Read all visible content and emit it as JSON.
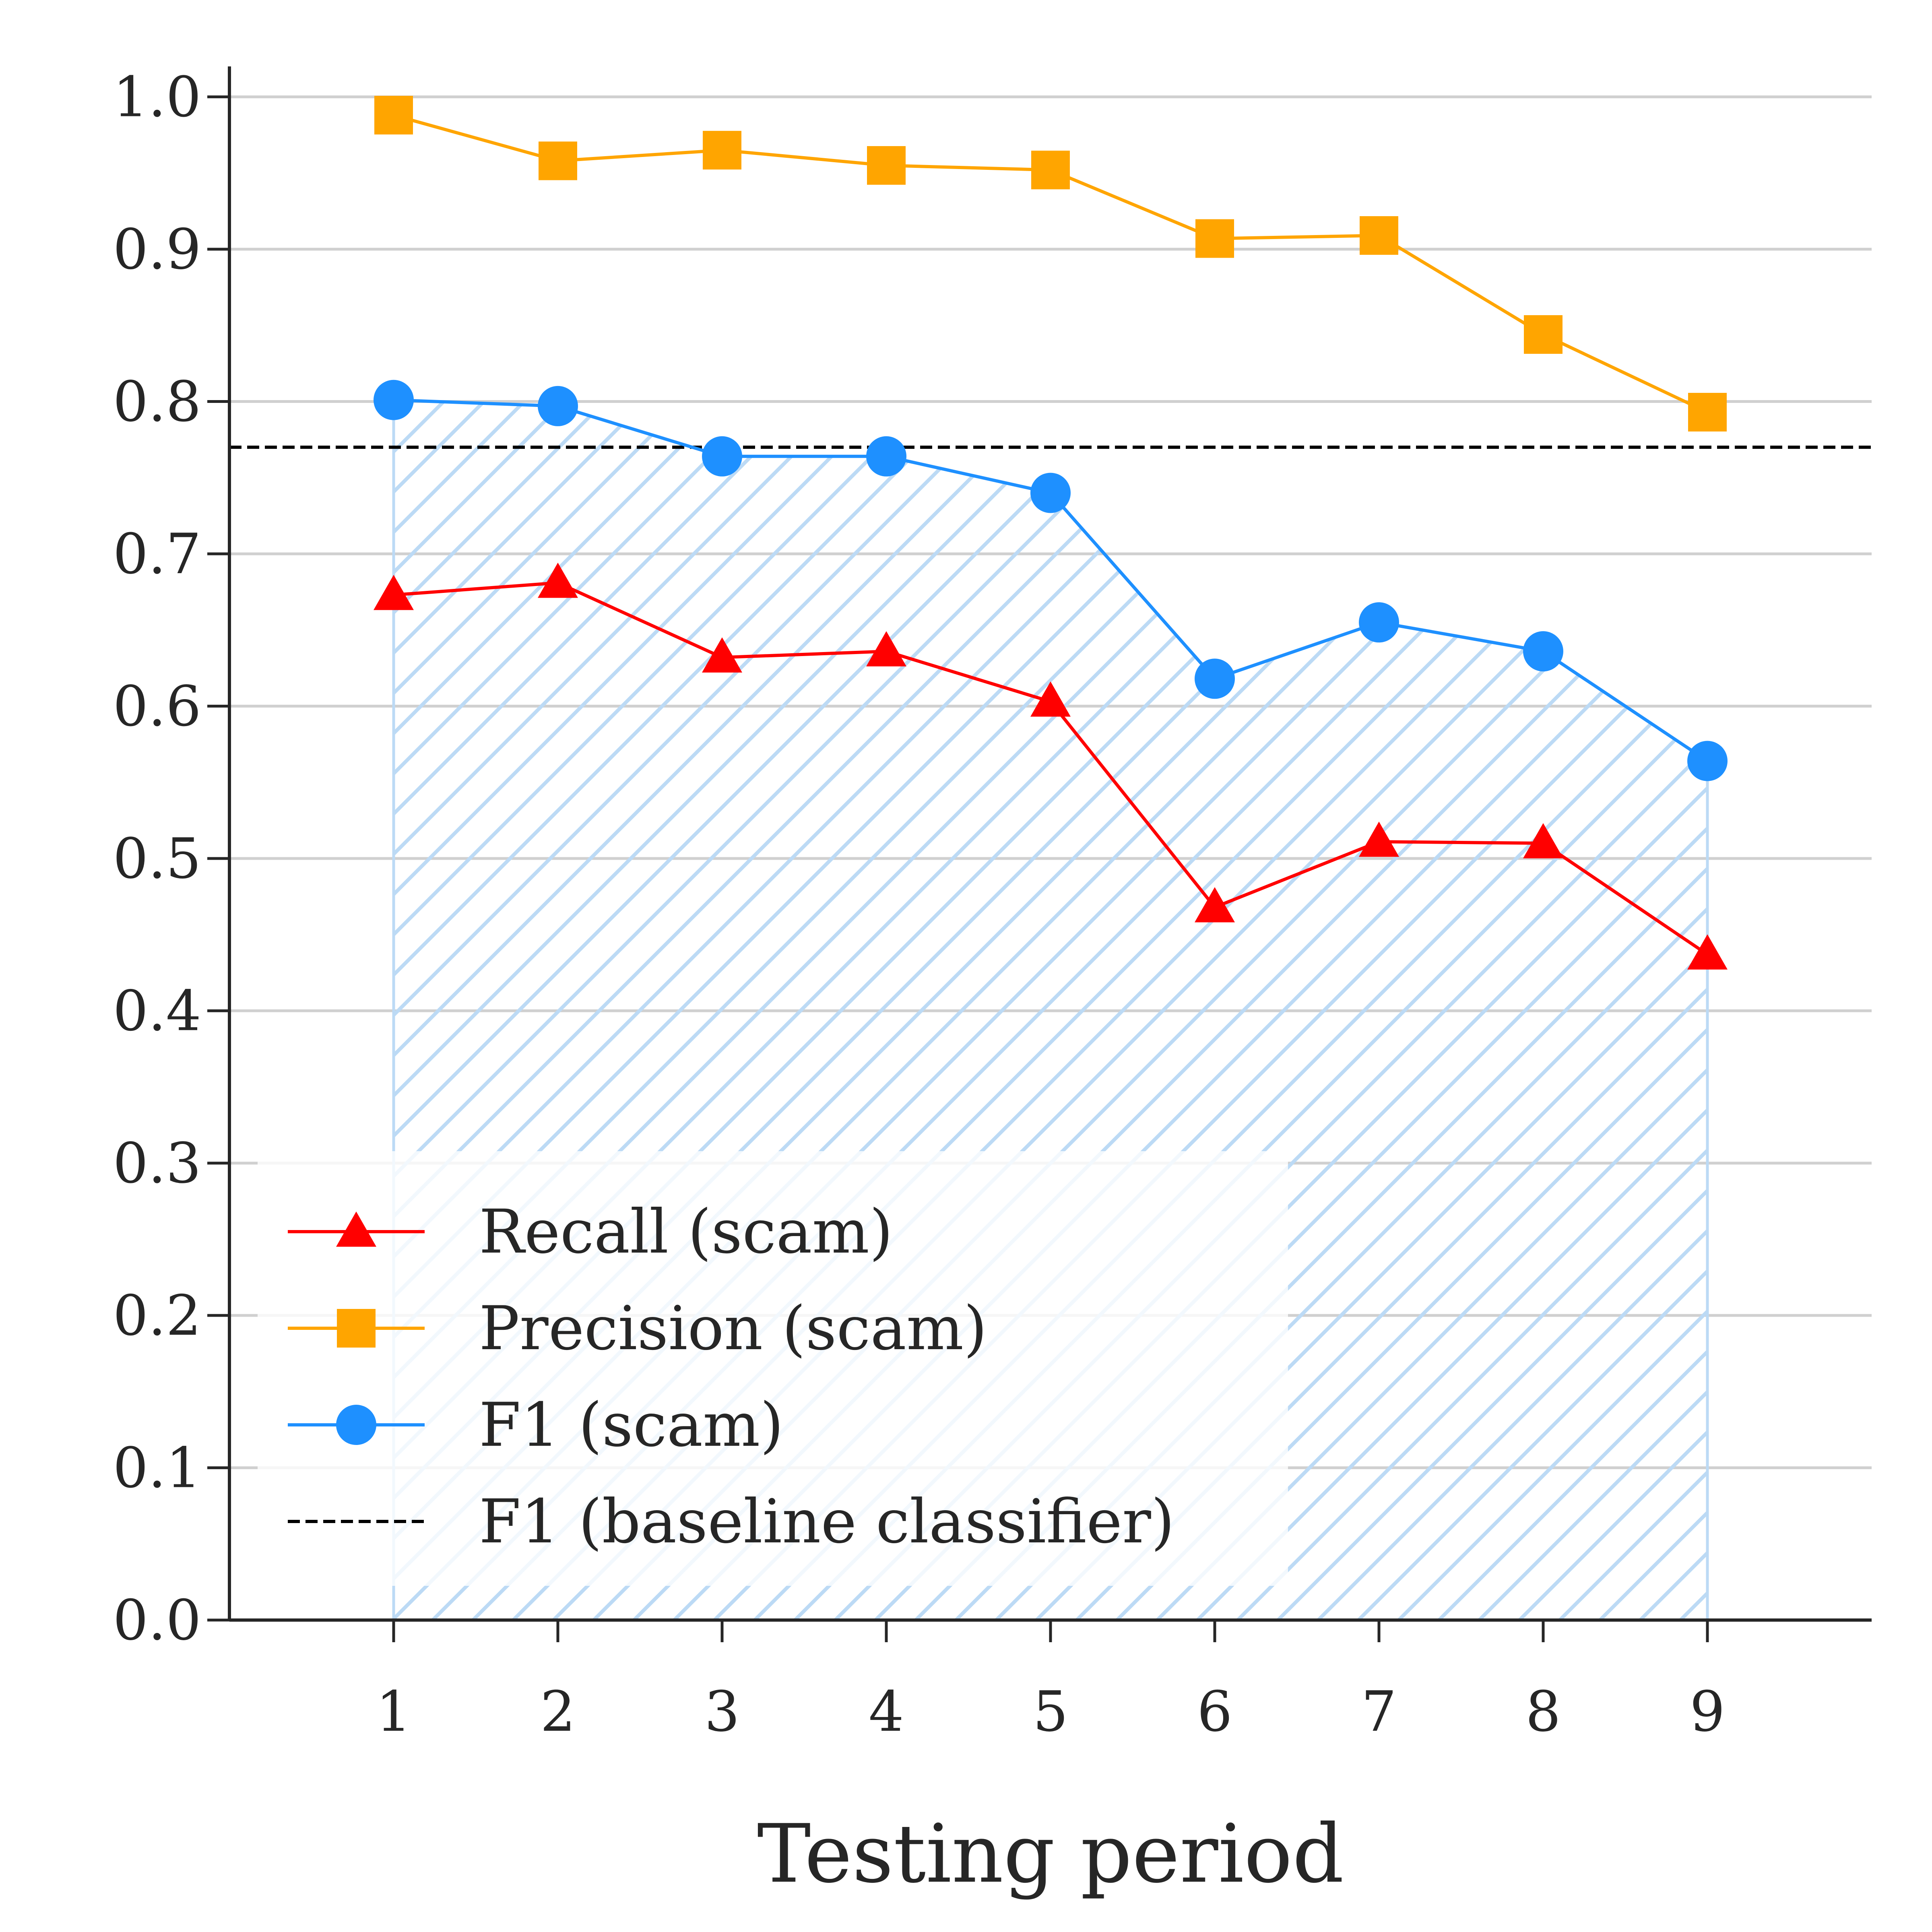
{
  "chart_data": {
    "type": "line",
    "title": "",
    "xlabel": "Testing period",
    "ylabel": "",
    "x": [
      1,
      2,
      3,
      4,
      5,
      6,
      7,
      8,
      9
    ],
    "xlim": [
      0,
      10
    ],
    "ylim": [
      0,
      1.02
    ],
    "yticks": [
      0.0,
      0.1,
      0.2,
      0.3,
      0.4,
      0.5,
      0.6,
      0.7,
      0.8,
      0.9,
      1.0
    ],
    "ytick_labels": [
      "0.0",
      "0.1",
      "0.2",
      "0.3",
      "0.4",
      "0.5",
      "0.6",
      "0.7",
      "0.8",
      "0.9",
      "1.0"
    ],
    "xtick_labels": [
      "1",
      "2",
      "3",
      "4",
      "5",
      "6",
      "7",
      "8",
      "9"
    ],
    "grid": "horizontal",
    "legend_position": "lower-left",
    "series": [
      {
        "name": "Recall (scam)",
        "marker": "triangle",
        "color": "#ff0000",
        "values": [
          0.673,
          0.681,
          0.632,
          0.636,
          0.603,
          0.468,
          0.511,
          0.51,
          0.437
        ]
      },
      {
        "name": "Precision (scam)",
        "marker": "square",
        "color": "#ffa500",
        "values": [
          0.988,
          0.958,
          0.965,
          0.955,
          0.952,
          0.907,
          0.909,
          0.844,
          0.793
        ]
      },
      {
        "name": "F1 (scam)",
        "marker": "circle",
        "color": "#1e90ff",
        "fill_under": true,
        "values": [
          0.801,
          0.797,
          0.764,
          0.764,
          0.74,
          0.618,
          0.655,
          0.636,
          0.564
        ]
      }
    ],
    "reference_lines": [
      {
        "name": "F1 (baseline classifier)",
        "y": 0.77,
        "style": "dashed",
        "color": "#000000"
      }
    ]
  }
}
